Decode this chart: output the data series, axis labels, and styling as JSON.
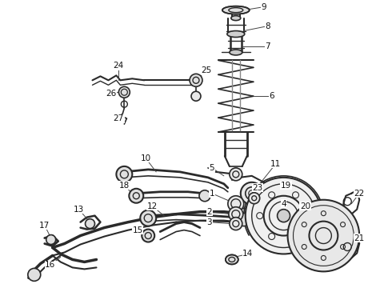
{
  "bg_color": "#ffffff",
  "line_color": "#2a2a2a",
  "label_color": "#111111",
  "fig_width": 4.9,
  "fig_height": 3.6,
  "dpi": 100,
  "border_color": "#333333"
}
